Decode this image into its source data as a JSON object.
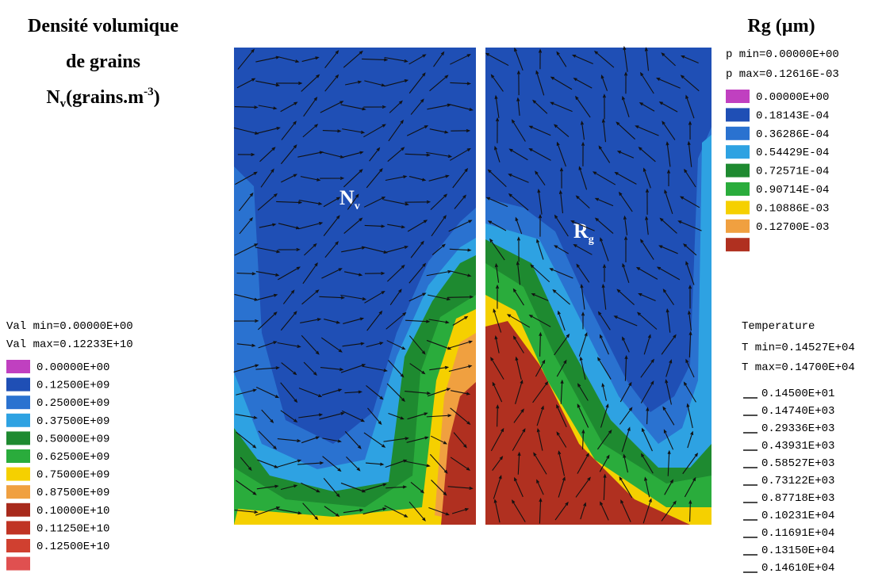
{
  "left_title": {
    "lines": [
      "Densité volumique",
      "de grains"
    ],
    "symbol": {
      "base": "N",
      "sub": "v",
      "unit": "(grains.m",
      "sup": "-3",
      "close": ")"
    }
  },
  "right_title": "Rg (µm)",
  "plots": [
    {
      "label": {
        "base": "N",
        "sub": "v"
      }
    },
    {
      "label": {
        "base": "R",
        "sub": "g"
      }
    }
  ],
  "density_legend": {
    "min": "Val min=0.00000E+00",
    "max": "Val max=0.12233E+10",
    "items": [
      {
        "label": "0.00000E+00",
        "color": "#c040c0"
      },
      {
        "label": "0.12500E+09",
        "color": "#1f4fb5"
      },
      {
        "label": "0.25000E+09",
        "color": "#2a72d0"
      },
      {
        "label": "0.37500E+09",
        "color": "#2ea2e2"
      },
      {
        "label": "0.50000E+09",
        "color": "#1e8a30"
      },
      {
        "label": "0.62500E+09",
        "color": "#2aac3c"
      },
      {
        "label": "0.75000E+09",
        "color": "#f5d000"
      },
      {
        "label": "0.87500E+09",
        "color": "#f0a040"
      },
      {
        "label": "0.10000E+10",
        "color": "#a82a1c"
      },
      {
        "label": "0.11250E+10",
        "color": "#c03424"
      },
      {
        "label": "0.12500E+10",
        "color": "#d04030"
      },
      {
        "color": "#e05050"
      }
    ]
  },
  "radius_legend": {
    "min": "p min=0.00000E+00",
    "max": "p max=0.12616E-03",
    "items": [
      {
        "label": "0.00000E+00",
        "color": "#c040c0"
      },
      {
        "label": "0.18143E-04",
        "color": "#1f4fb5"
      },
      {
        "label": "0.36286E-04",
        "color": "#2a72d0"
      },
      {
        "label": "0.54429E-04",
        "color": "#2ea2e2"
      },
      {
        "label": "0.72571E-04",
        "color": "#1e8a30"
      },
      {
        "label": "0.90714E-04",
        "color": "#2aac3c"
      },
      {
        "label": "0.10886E-03",
        "color": "#f5d000"
      },
      {
        "label": "0.12700E-03",
        "color": "#f0a040"
      },
      {
        "color": "#b03020"
      }
    ]
  },
  "temperature_legend": {
    "title": "Temperature",
    "min": "T min=0.14527E+04",
    "max": "T max=0.14700E+04",
    "items": [
      "0.14500E+01",
      "0.14740E+03",
      "0.29336E+03",
      "0.43931E+03",
      "0.58527E+03",
      "0.73122E+03",
      "0.87718E+03",
      "0.10231E+04",
      "0.11691E+04",
      "0.13150E+04",
      "0.14610E+04"
    ]
  }
}
